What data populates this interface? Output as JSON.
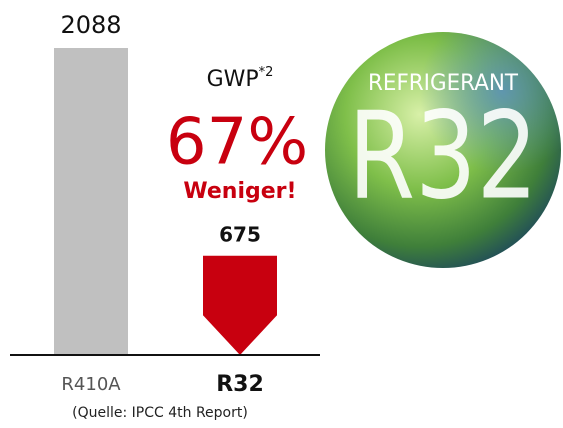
{
  "chart_data": {
    "type": "bar",
    "categories": [
      "R410A",
      "R32"
    ],
    "values": [
      2088,
      675
    ],
    "colors": [
      "#c0c0c0",
      "#c8000f"
    ],
    "gwp_label": "GWP",
    "gwp_footnote": "*2",
    "reduction": "67%",
    "reduction_note": "Weniger!",
    "source": "(Quelle: IPCC 4th Report)",
    "badge": {
      "top": "REFRIGERANT",
      "main": "R32"
    }
  }
}
